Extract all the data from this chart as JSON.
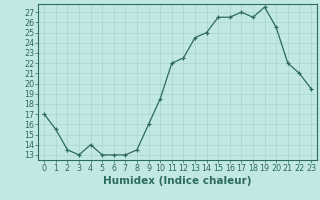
{
  "x": [
    0,
    1,
    2,
    3,
    4,
    5,
    6,
    7,
    8,
    9,
    10,
    11,
    12,
    13,
    14,
    15,
    16,
    17,
    18,
    19,
    20,
    21,
    22,
    23
  ],
  "y": [
    17,
    15.5,
    13.5,
    13,
    14,
    13,
    13,
    13,
    13.5,
    16,
    18.5,
    22,
    22.5,
    24.5,
    25,
    26.5,
    26.5,
    27,
    26.5,
    27.5,
    25.5,
    22,
    21,
    19.5
  ],
  "line_color": "#2d6b5e",
  "marker": "+",
  "bg_color": "#c2e8e5",
  "grid_color": "#aad4d0",
  "xlabel": "Humidex (Indice chaleur)",
  "ylabel_ticks": [
    13,
    14,
    15,
    16,
    17,
    18,
    19,
    20,
    21,
    22,
    23,
    24,
    25,
    26,
    27
  ],
  "ylim": [
    12.5,
    27.8
  ],
  "xlim": [
    -0.5,
    23.5
  ],
  "xticks": [
    0,
    1,
    2,
    3,
    4,
    5,
    6,
    7,
    8,
    9,
    10,
    11,
    12,
    13,
    14,
    15,
    16,
    17,
    18,
    19,
    20,
    21,
    22,
    23
  ],
  "tick_fontsize": 5.8,
  "xlabel_fontsize": 7.5,
  "marker_size": 3.5,
  "linewidth": 0.9
}
